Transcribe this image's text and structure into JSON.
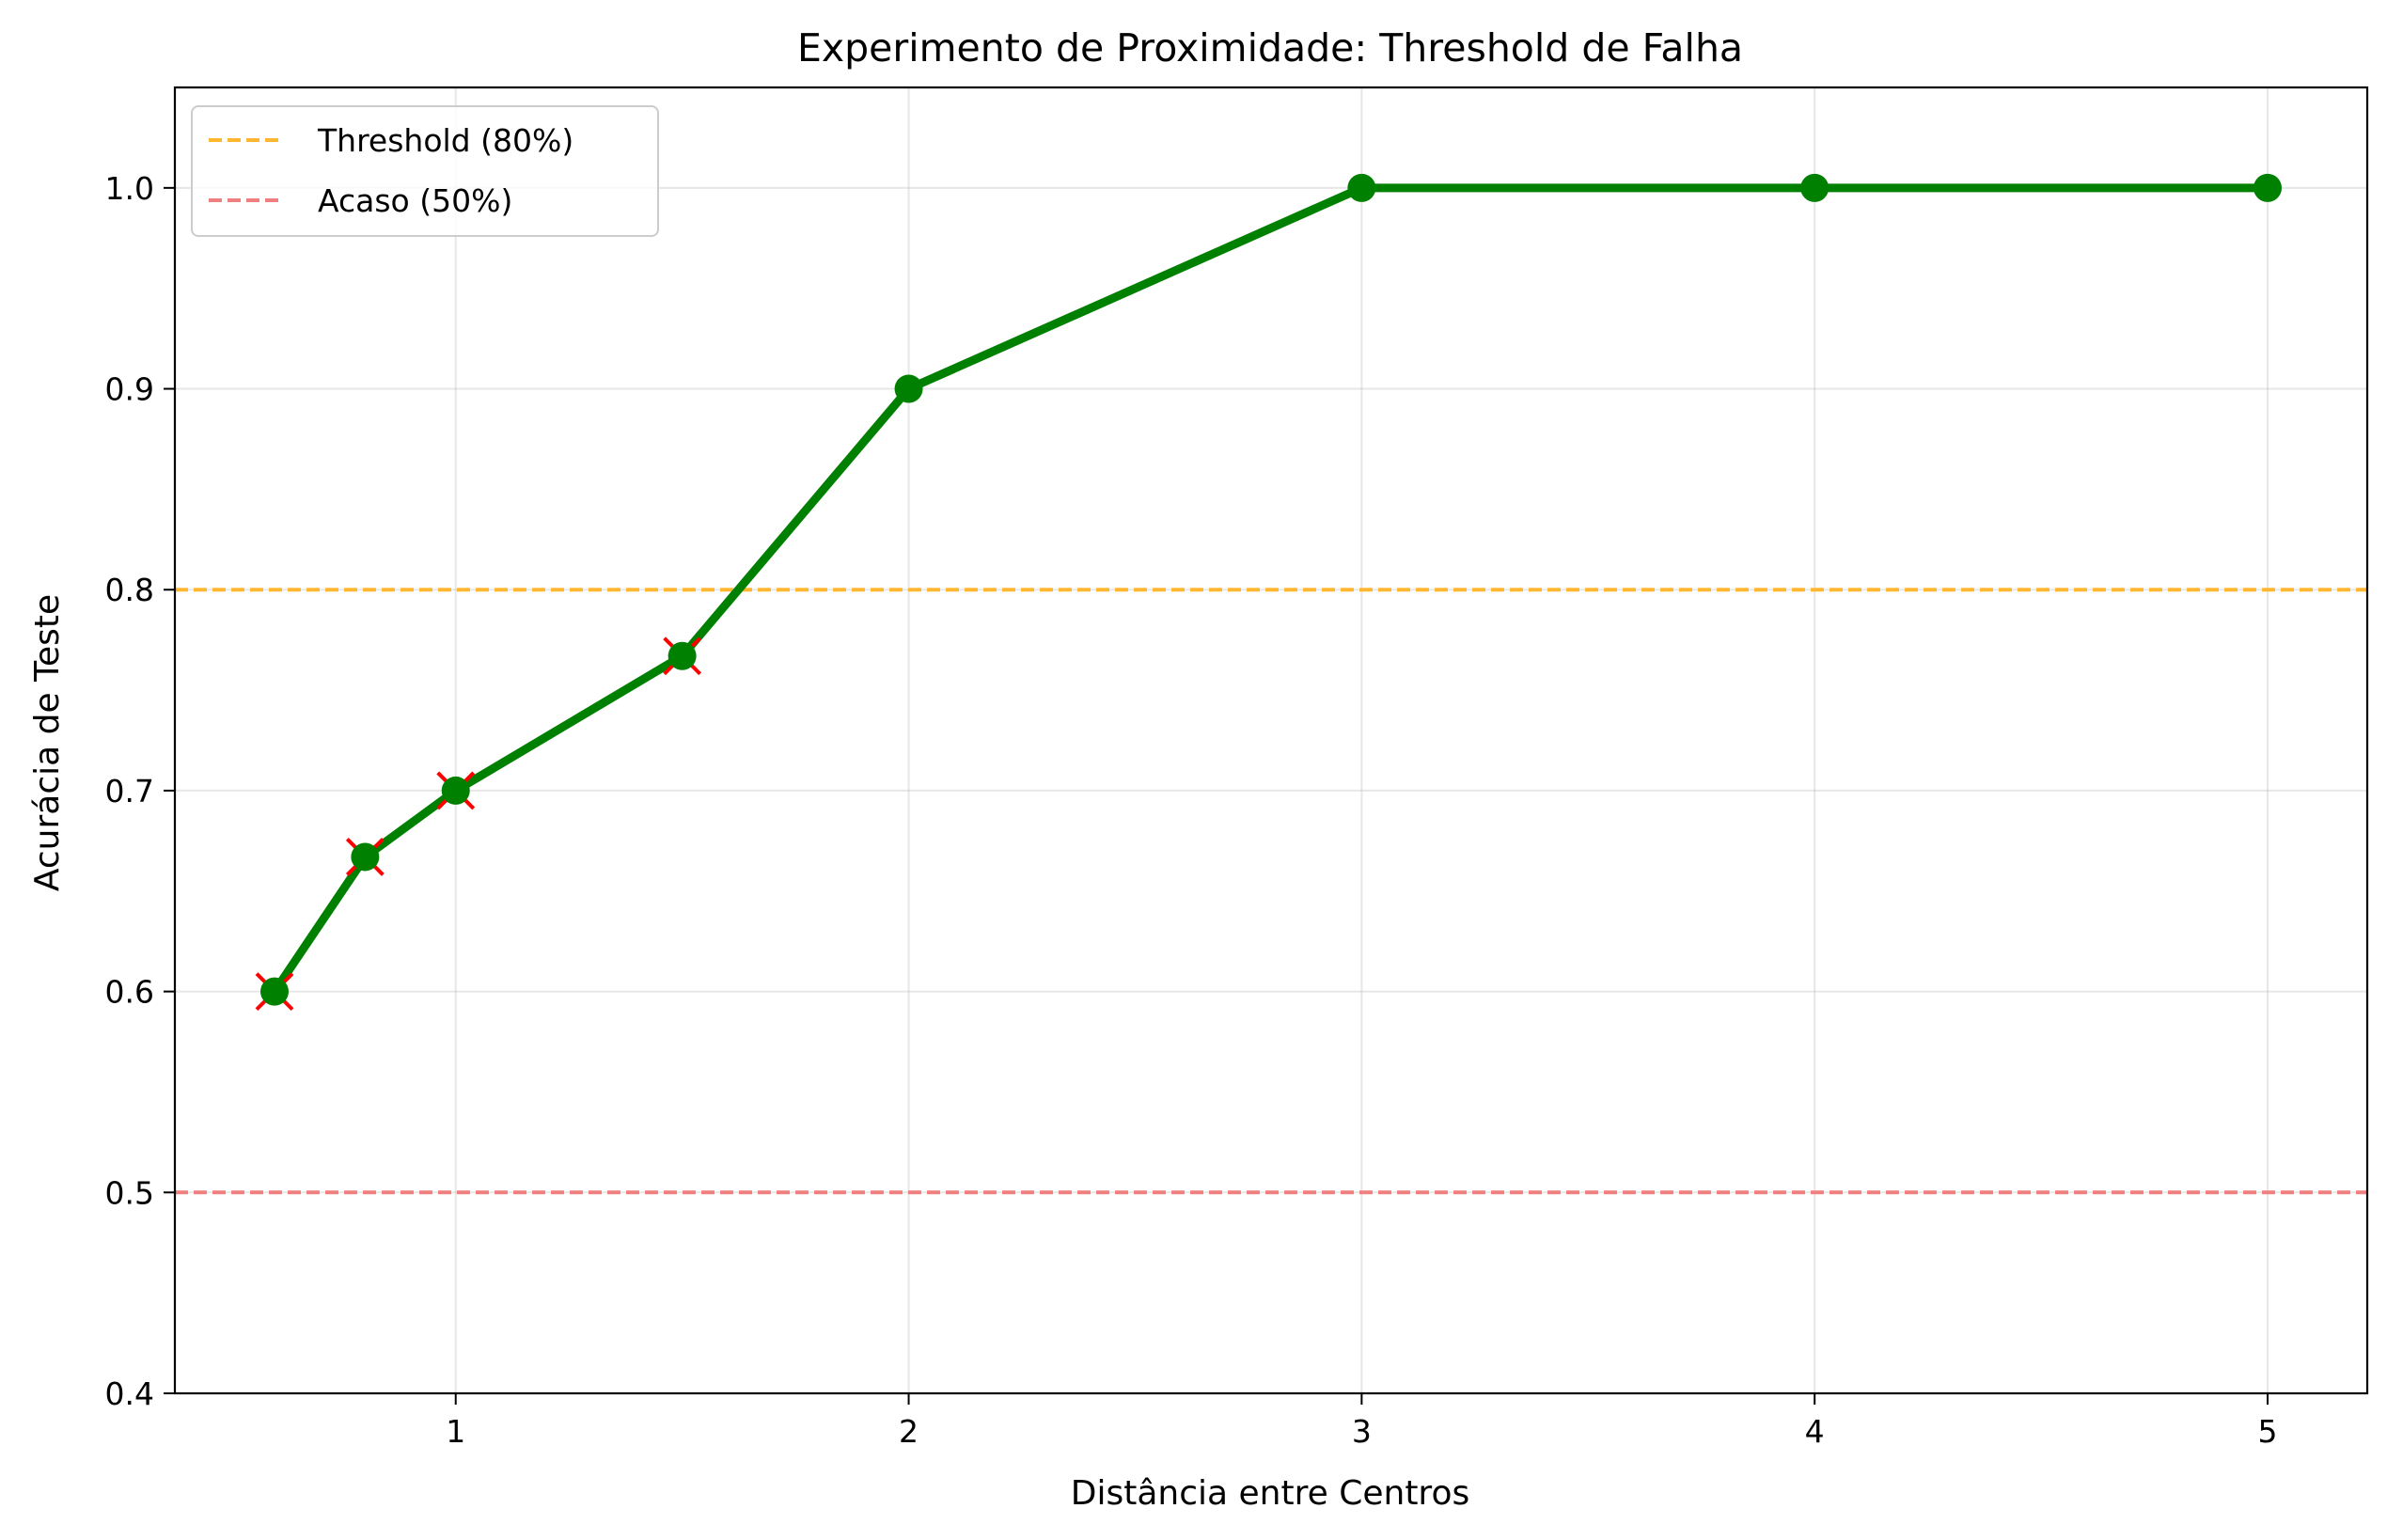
{
  "chart_data": {
    "type": "line",
    "title": "Experimento de Proximidade: Threshold de Falha",
    "xlabel": "Distância entre Centros",
    "ylabel": "Acurácia de Teste",
    "xlim": [
      0.38,
      5.22
    ],
    "ylim": [
      0.4,
      1.05
    ],
    "xticks": [
      1,
      2,
      3,
      4,
      5
    ],
    "xtick_labels": [
      "1",
      "2",
      "3",
      "4",
      "5"
    ],
    "yticks": [
      0.4,
      0.5,
      0.6,
      0.7,
      0.8,
      0.9,
      1.0
    ],
    "ytick_labels": [
      "0.4",
      "0.5",
      "0.6",
      "0.7",
      "0.8",
      "0.9",
      "1.0"
    ],
    "grid": true,
    "legend_placement": "top-left",
    "series": [
      {
        "x": [
          0.6,
          0.8,
          1.0,
          1.5,
          2.0,
          3.0,
          4.0,
          5.0
        ],
        "y": [
          0.6,
          0.667,
          0.7,
          0.767,
          0.9,
          1.0,
          1.0,
          1.0
        ],
        "color": "#008000",
        "marker": "circle",
        "failure_marker_color": "#ff0000",
        "failed_points": [
          true,
          true,
          true,
          true,
          false,
          false,
          false,
          false
        ]
      }
    ],
    "reference_lines": [
      {
        "name": "Threshold (80%)",
        "y": 0.8,
        "color": "#ffb732",
        "style": "dashed"
      },
      {
        "name": "Acaso (50%)",
        "y": 0.5,
        "color": "#f08080",
        "style": "dashed"
      }
    ]
  }
}
